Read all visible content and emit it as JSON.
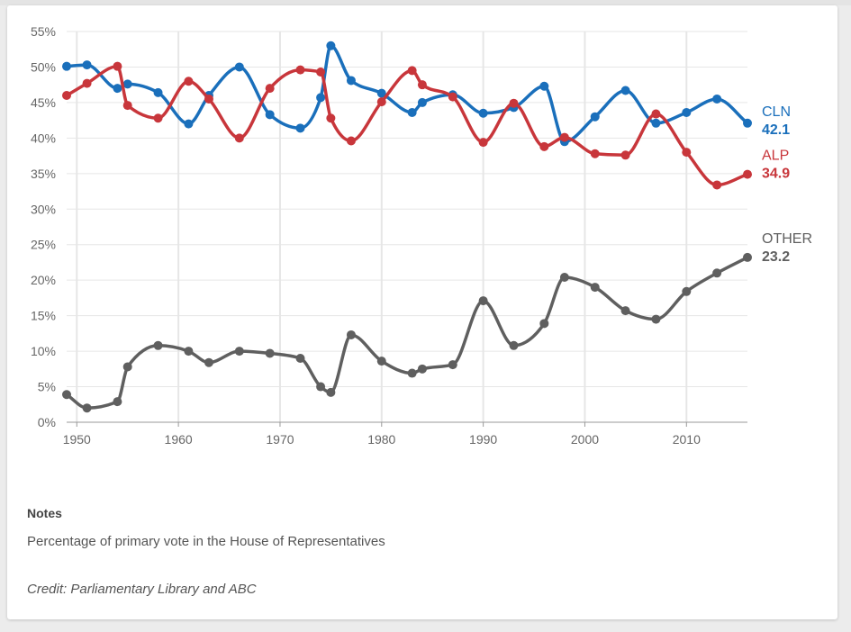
{
  "chart_data": {
    "type": "line",
    "x_ticks": [
      1950,
      1960,
      1970,
      1980,
      1990,
      2000,
      2010
    ],
    "y_ticks": [
      "0%",
      "5%",
      "10%",
      "15%",
      "20%",
      "25%",
      "30%",
      "35%",
      "40%",
      "45%",
      "50%",
      "55%"
    ],
    "xlim": [
      1949,
      2016
    ],
    "ylim": [
      0,
      55
    ],
    "grid": true,
    "series": [
      {
        "name": "CLN",
        "value_label": "42.1",
        "color": "#1a6fbb",
        "points": [
          [
            1949,
            50.1
          ],
          [
            1951,
            50.3
          ],
          [
            1954,
            47.0
          ],
          [
            1955,
            47.6
          ],
          [
            1958,
            46.4
          ],
          [
            1961,
            42.0
          ],
          [
            1963,
            46.0
          ],
          [
            1966,
            50.0
          ],
          [
            1969,
            43.3
          ],
          [
            1972,
            41.4
          ],
          [
            1974,
            45.7
          ],
          [
            1975,
            53.0
          ],
          [
            1977,
            48.1
          ],
          [
            1980,
            46.3
          ],
          [
            1983,
            43.6
          ],
          [
            1984,
            45.0
          ],
          [
            1987,
            46.1
          ],
          [
            1990,
            43.5
          ],
          [
            1993,
            44.3
          ],
          [
            1996,
            47.3
          ],
          [
            1998,
            39.5
          ],
          [
            2001,
            43.0
          ],
          [
            2004,
            46.7
          ],
          [
            2007,
            42.1
          ],
          [
            2010,
            43.6
          ],
          [
            2013,
            45.5
          ],
          [
            2016,
            42.1
          ]
        ]
      },
      {
        "name": "ALP",
        "value_label": "34.9",
        "color": "#c8363b",
        "points": [
          [
            1949,
            46.0
          ],
          [
            1951,
            47.7
          ],
          [
            1954,
            50.1
          ],
          [
            1955,
            44.6
          ],
          [
            1958,
            42.8
          ],
          [
            1961,
            48.0
          ],
          [
            1963,
            45.5
          ],
          [
            1966,
            40.0
          ],
          [
            1969,
            47.0
          ],
          [
            1972,
            49.6
          ],
          [
            1974,
            49.3
          ],
          [
            1975,
            42.8
          ],
          [
            1977,
            39.6
          ],
          [
            1980,
            45.1
          ],
          [
            1983,
            49.5
          ],
          [
            1984,
            47.5
          ],
          [
            1987,
            45.8
          ],
          [
            1990,
            39.4
          ],
          [
            1993,
            44.9
          ],
          [
            1996,
            38.8
          ],
          [
            1998,
            40.1
          ],
          [
            2001,
            37.8
          ],
          [
            2004,
            37.6
          ],
          [
            2007,
            43.4
          ],
          [
            2010,
            38.0
          ],
          [
            2013,
            33.4
          ],
          [
            2016,
            34.9
          ]
        ]
      },
      {
        "name": "OTHER",
        "value_label": "23.2",
        "color": "#5f5f5f",
        "points": [
          [
            1949,
            3.9
          ],
          [
            1951,
            2.0
          ],
          [
            1954,
            2.9
          ],
          [
            1955,
            7.8
          ],
          [
            1958,
            10.8
          ],
          [
            1961,
            10.0
          ],
          [
            1963,
            8.4
          ],
          [
            1966,
            10.0
          ],
          [
            1969,
            9.7
          ],
          [
            1972,
            9.0
          ],
          [
            1974,
            5.0
          ],
          [
            1975,
            4.2
          ],
          [
            1977,
            12.3
          ],
          [
            1980,
            8.6
          ],
          [
            1983,
            6.9
          ],
          [
            1984,
            7.5
          ],
          [
            1987,
            8.1
          ],
          [
            1990,
            17.1
          ],
          [
            1993,
            10.8
          ],
          [
            1996,
            13.9
          ],
          [
            1998,
            20.4
          ],
          [
            2001,
            19.0
          ],
          [
            2004,
            15.7
          ],
          [
            2007,
            14.5
          ],
          [
            2010,
            18.4
          ],
          [
            2013,
            21.0
          ],
          [
            2016,
            23.2
          ]
        ]
      }
    ]
  },
  "notes": {
    "heading": "Notes",
    "text": "Percentage of primary vote in the House of Representatives"
  },
  "credit": "Credit: Parliamentary Library and ABC"
}
